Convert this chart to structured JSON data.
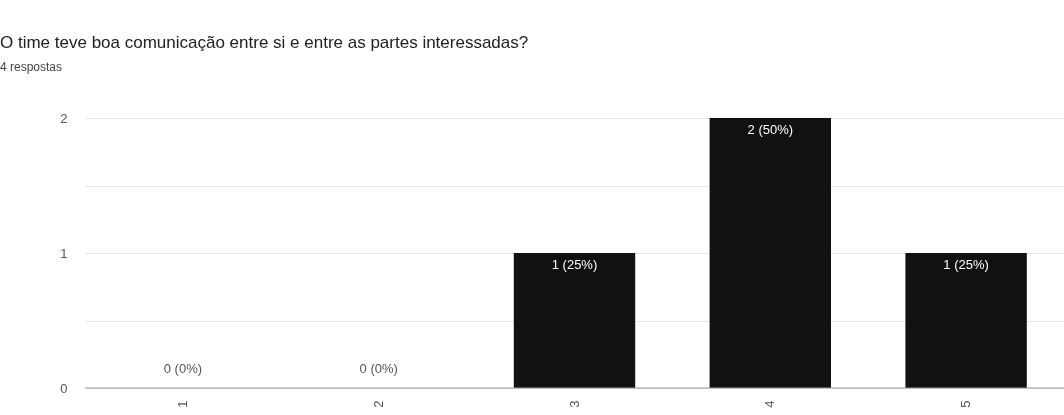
{
  "chart_data": {
    "type": "bar",
    "title": "O time teve boa comunicação entre si e entre as partes interessadas?",
    "subtitle": "4 respostas",
    "categories": [
      "1",
      "2",
      "3",
      "4",
      "5"
    ],
    "values": [
      0,
      0,
      1,
      2,
      1
    ],
    "color": "#111111",
    "value_labels": [
      "0 (0%)",
      "0 (0%)",
      "1 (25%)",
      "2 (50%)",
      "1 (25%)"
    ],
    "ylim": [
      0,
      2
    ],
    "yticks": [
      0,
      {
        "value": 0.5,
        "label": null
      },
      1,
      {
        "value": 1.5,
        "label": null
      },
      2
    ],
    "grid": true
  }
}
